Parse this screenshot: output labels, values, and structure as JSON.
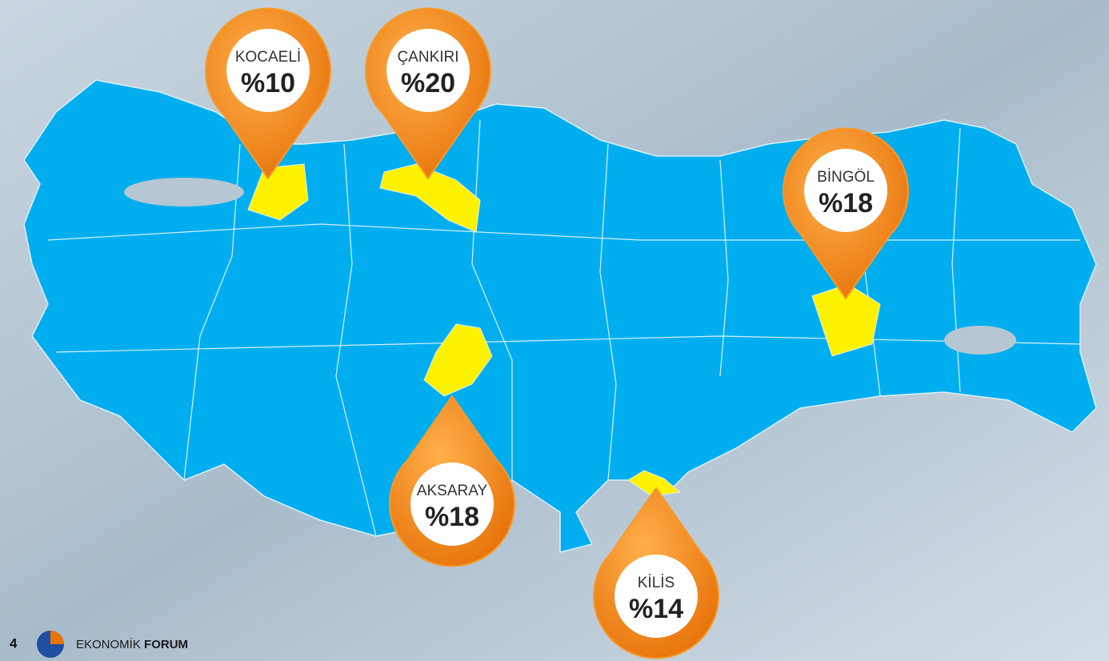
{
  "pins": [
    {
      "name": "KOCAELİ",
      "label": "%10"
    },
    {
      "name": "ÇANKIRI",
      "label": "%20"
    },
    {
      "name": "BİNGÖL",
      "label": "%18"
    },
    {
      "name": "AKSARAY",
      "label": "%18"
    },
    {
      "name": "KİLİS",
      "label": "%14"
    }
  ],
  "footer": {
    "page": "4",
    "brand": "EKONOMİK",
    "brand_bold": "FORUM"
  }
}
